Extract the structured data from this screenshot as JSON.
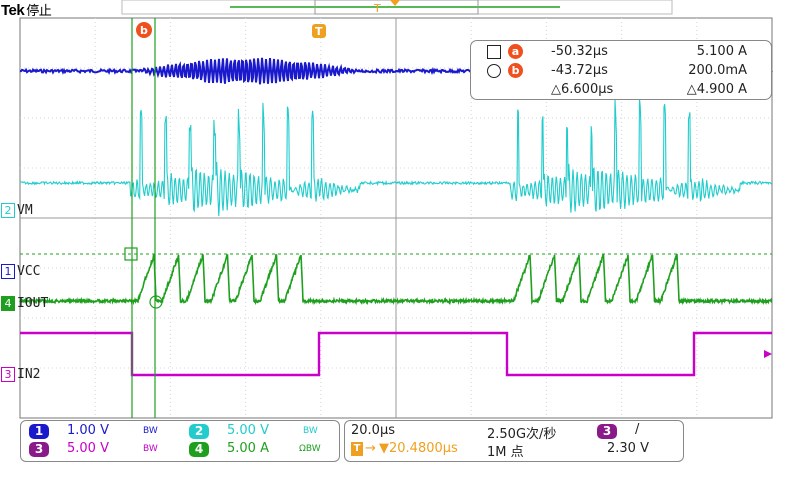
{
  "brand": "Tek",
  "run_state": "停止",
  "trigger_marker": "T",
  "cursor_a_marker": "a",
  "cursor_b_marker": "b",
  "channels": [
    {
      "num": "1",
      "label": "VCC",
      "color": "#1a1acc"
    },
    {
      "num": "2",
      "label": "VM",
      "color": "#22cccc"
    },
    {
      "num": "3",
      "label": "IN2",
      "color": "#c800c8"
    },
    {
      "num": "4",
      "label": "IOUT",
      "color": "#1ea01e"
    }
  ],
  "cursor_readout": {
    "a": {
      "time": "-50.32µs",
      "value": "5.100 A"
    },
    "b": {
      "time": "-43.72µs",
      "value": "200.0mA"
    },
    "delta": {
      "time": "△6.600µs",
      "value": "△4.900 A"
    }
  },
  "vertical": {
    "ch1": {
      "num": "1",
      "scale": "1.00 V",
      "bw": "BW"
    },
    "ch2": {
      "num": "2",
      "scale": "5.00 V",
      "bw": "BW"
    },
    "ch3": {
      "num": "3",
      "scale": "5.00 V",
      "bw": "BW"
    },
    "ch4": {
      "num": "4",
      "scale": "5.00 A",
      "bw": "ΩBW"
    }
  },
  "horizontal": {
    "timebase": "20.0µs",
    "sample_rate": "2.50G次/秒",
    "trigger_pos": "▼20.4800µs",
    "record_length": "1M 点",
    "trig_source": "3",
    "trig_slope": "/",
    "trig_level": "2.30 V"
  },
  "colors": {
    "ch1": "#1a1acc",
    "ch2": "#22cccc",
    "ch3": "#c800c8",
    "ch4": "#1ea01e",
    "trigger": "#f0a020",
    "cursor_badge": "#f0501e"
  }
}
